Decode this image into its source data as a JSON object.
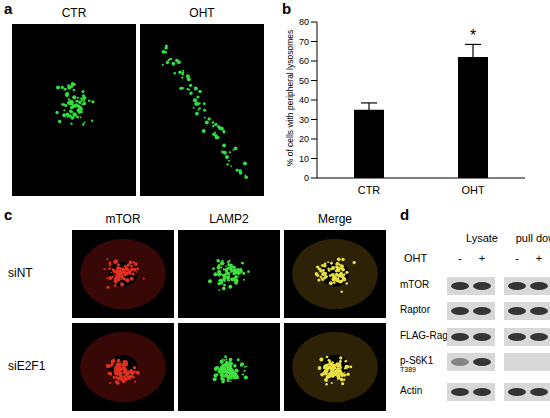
{
  "chart_data": {
    "type": "bar",
    "panel_label": "b",
    "y_label": "% of cells with peripheral lysosomes",
    "categories": [
      "CTR",
      "OHT"
    ],
    "values": [
      35,
      62
    ],
    "errors": [
      3.5,
      6.5
    ],
    "color": "#000000",
    "ylim": [
      0,
      80
    ],
    "yticks": [
      0,
      10,
      20,
      30,
      40,
      50,
      60,
      70,
      80
    ],
    "grid": false,
    "annotations": [
      {
        "category": "OHT",
        "text": "*"
      }
    ]
  },
  "panels": {
    "a": {
      "label": "a",
      "columns": [
        "CTR",
        "OHT"
      ]
    },
    "c": {
      "label": "c",
      "columns": [
        "mTOR",
        "LAMP2",
        "Merge"
      ],
      "rows": [
        "siNT",
        "siE2F1"
      ]
    },
    "d": {
      "label": "d",
      "groups": [
        "Lysate",
        "pull down"
      ],
      "treatment": "OHT",
      "lanes": [
        "-",
        "+",
        "-",
        "+"
      ],
      "rows": [
        {
          "label": "mTOR"
        },
        {
          "label": "Raptor"
        },
        {
          "label": "FLAG-RagB"
        },
        {
          "label": "p-S6K1",
          "sublabel": "T389"
        },
        {
          "label": "Actin"
        }
      ]
    }
  }
}
